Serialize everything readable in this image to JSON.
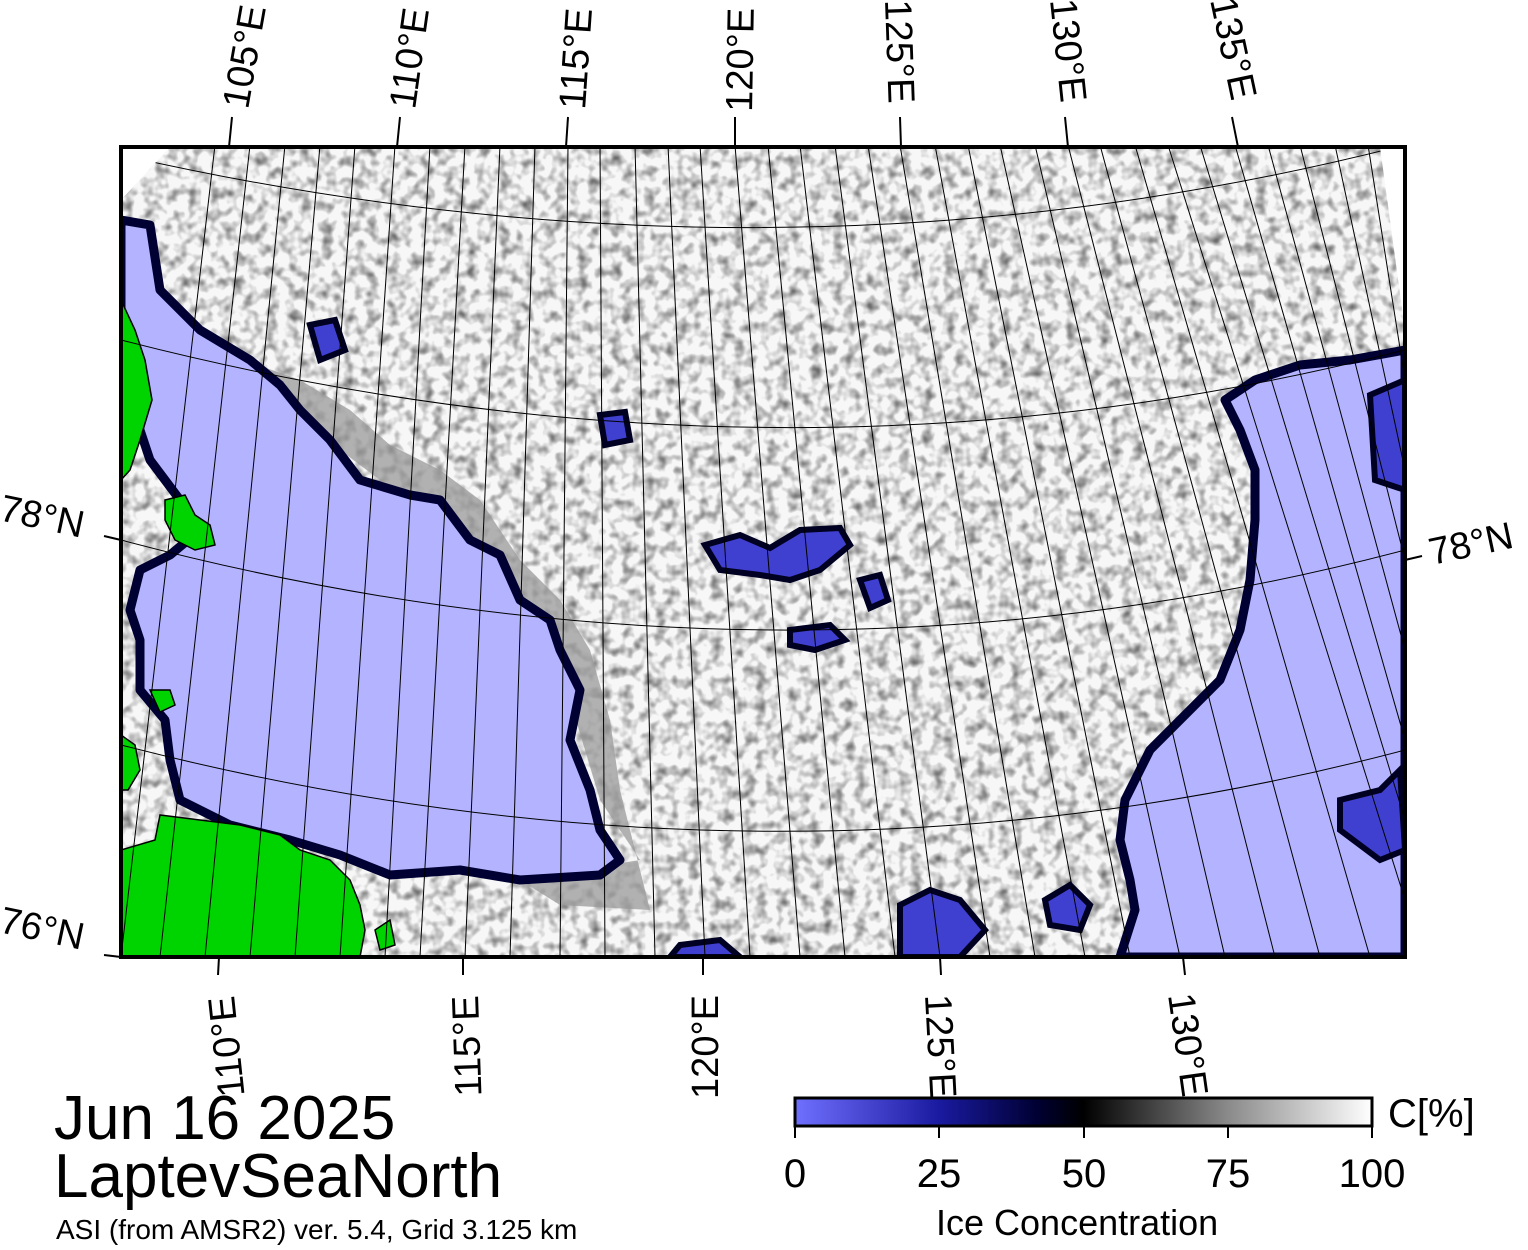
{
  "region": "LaptevSeaNorth",
  "date": "Jun 16 2025",
  "subtitle": "ASI (from AMSR2) ver. 5.4,  Grid 3.125 km",
  "colors": {
    "land": "#00d400",
    "open_water": "#b3b3ff",
    "ice_low": "#7070ff",
    "ice_mid": "#000033",
    "ice_high": "#ffffff",
    "coast_gray": "#8c8c8c"
  },
  "map": {
    "top_lon_labels": [
      "105°E",
      "110°E",
      "115°E",
      "120°E",
      "125°E",
      "130°E",
      "135°E"
    ],
    "bottom_lon_labels": [
      "110°E",
      "115°E",
      "120°E",
      "125°E",
      "130°E"
    ],
    "left_lat_labels": [
      "78°N",
      "76°N"
    ],
    "right_lat_labels": [
      "78°N"
    ]
  },
  "colorbar": {
    "label": "Ice Concentration",
    "unit": "C[%]",
    "ticks": [
      "0",
      "25",
      "50",
      "75",
      "100"
    ],
    "range": [
      0,
      100
    ]
  }
}
